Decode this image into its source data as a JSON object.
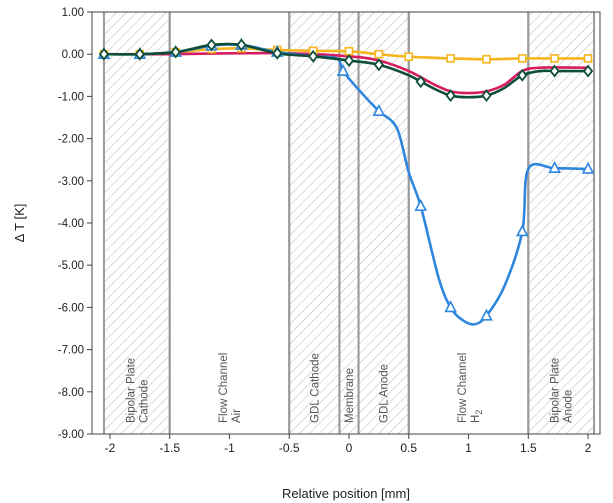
{
  "chart_data": {
    "type": "line",
    "xlabel": "Relative position [mm]",
    "ylabel": "Δ T [K]",
    "xlim": [
      -2.15,
      2.1
    ],
    "ylim": [
      -9.0,
      1.0
    ],
    "x_ticks": [
      -2,
      -1.5,
      -1,
      -0.5,
      0,
      0.5,
      1,
      1.5,
      2
    ],
    "x_tick_labels": [
      "-2",
      "-1.5",
      "-1",
      "-0.5",
      "0",
      "0.5",
      "1",
      "1.5",
      "2"
    ],
    "y_ticks": [
      1,
      0,
      -1,
      -2,
      -3,
      -4,
      -5,
      -6,
      -7,
      -8,
      -9
    ],
    "y_tick_labels": [
      "1.00",
      "0.00",
      "-1.00",
      "-2.00",
      "-3.00",
      "-4.00",
      "-5.00",
      "-6.00",
      "-7.00",
      "-8.00",
      "-9.00"
    ],
    "grid": false,
    "regions": [
      {
        "x0": -2.05,
        "x1": -1.5,
        "hatched": true,
        "label_lines": [
          "Bipolar Plate",
          "Cathode"
        ]
      },
      {
        "x0": -1.5,
        "x1": -0.5,
        "hatched": false,
        "label_lines": [
          "Flow Channel",
          "Air"
        ]
      },
      {
        "x0": -0.5,
        "x1": -0.08,
        "hatched": true,
        "label_lines": [
          "GDL Cathode"
        ]
      },
      {
        "x0": -0.08,
        "x1": 0.08,
        "hatched": true,
        "label_lines": [
          "Membrane"
        ]
      },
      {
        "x0": 0.08,
        "x1": 0.5,
        "hatched": true,
        "label_lines": [
          "GDL Anode"
        ]
      },
      {
        "x0": 0.5,
        "x1": 1.5,
        "hatched": false,
        "label_lines": [
          "Flow Channel",
          "H",
          "2"
        ]
      },
      {
        "x0": 1.5,
        "x1": 2.05,
        "hatched": true,
        "label_lines": [
          "Bipolar Plate",
          "Anode"
        ]
      }
    ],
    "series": [
      {
        "color": "#f5b51b",
        "marker": "square",
        "x": [
          -2.05,
          -1.75,
          -1.45,
          -1.15,
          -0.9,
          -0.6,
          -0.3,
          0.0,
          0.25,
          0.5,
          0.85,
          1.15,
          1.45,
          1.72,
          2.0
        ],
        "y": [
          0.0,
          0.0,
          0.05,
          0.12,
          0.14,
          0.1,
          0.08,
          0.07,
          0.0,
          -0.06,
          -0.1,
          -0.12,
          -0.1,
          -0.1,
          -0.1
        ],
        "markers_x": [
          -2.05,
          -1.75,
          -1.45,
          -1.15,
          -0.9,
          -0.6,
          -0.3,
          0.0,
          0.25,
          0.5,
          0.85,
          1.15,
          1.45,
          1.72,
          2.0
        ]
      },
      {
        "color": "#d81b60",
        "marker": "none",
        "x": [
          -2.05,
          -1.5,
          -1.0,
          -0.5,
          0.0,
          0.25,
          0.5,
          0.7,
          0.85,
          1.0,
          1.15,
          1.3,
          1.45,
          1.6,
          2.0
        ],
        "y": [
          0.0,
          0.0,
          0.02,
          0.02,
          -0.05,
          -0.15,
          -0.4,
          -0.7,
          -0.88,
          -0.92,
          -0.88,
          -0.72,
          -0.4,
          -0.32,
          -0.32
        ],
        "markers_x": []
      },
      {
        "color": "#2e86de",
        "marker": "triangle",
        "x": [
          -2.05,
          -1.75,
          -1.45,
          -1.15,
          -0.9,
          -0.6,
          -0.3,
          -0.1,
          -0.05,
          0.1,
          0.25,
          0.4,
          0.5,
          0.6,
          0.75,
          0.85,
          0.95,
          1.05,
          1.15,
          1.3,
          1.45,
          1.5,
          1.72,
          2.0
        ],
        "y": [
          0.0,
          0.0,
          0.05,
          0.2,
          0.22,
          0.05,
          -0.05,
          -0.1,
          -0.4,
          -0.9,
          -1.35,
          -1.75,
          -2.8,
          -3.6,
          -5.3,
          -6.0,
          -6.3,
          -6.4,
          -6.2,
          -5.5,
          -4.2,
          -2.72,
          -2.7,
          -2.72
        ],
        "markers_x": [
          -2.05,
          -1.75,
          -1.45,
          -1.15,
          -0.9,
          -0.6,
          -0.05,
          0.25,
          0.6,
          0.85,
          1.15,
          1.45,
          1.72,
          2.0
        ]
      },
      {
        "color": "#0d4d3a",
        "marker": "diamond",
        "x": [
          -2.05,
          -1.75,
          -1.45,
          -1.15,
          -0.9,
          -0.6,
          -0.3,
          0.0,
          0.25,
          0.5,
          0.7,
          0.85,
          1.0,
          1.15,
          1.3,
          1.45,
          1.6,
          1.72,
          2.0
        ],
        "y": [
          0.0,
          0.0,
          0.05,
          0.22,
          0.22,
          0.02,
          -0.05,
          -0.15,
          -0.25,
          -0.5,
          -0.8,
          -0.98,
          -1.02,
          -0.98,
          -0.8,
          -0.5,
          -0.4,
          -0.4,
          -0.4
        ],
        "markers_x": [
          -2.05,
          -1.75,
          -1.45,
          -1.15,
          -0.9,
          -0.6,
          -0.3,
          0.0,
          0.25,
          0.6,
          0.85,
          1.15,
          1.45,
          1.72,
          2.0
        ]
      }
    ]
  }
}
